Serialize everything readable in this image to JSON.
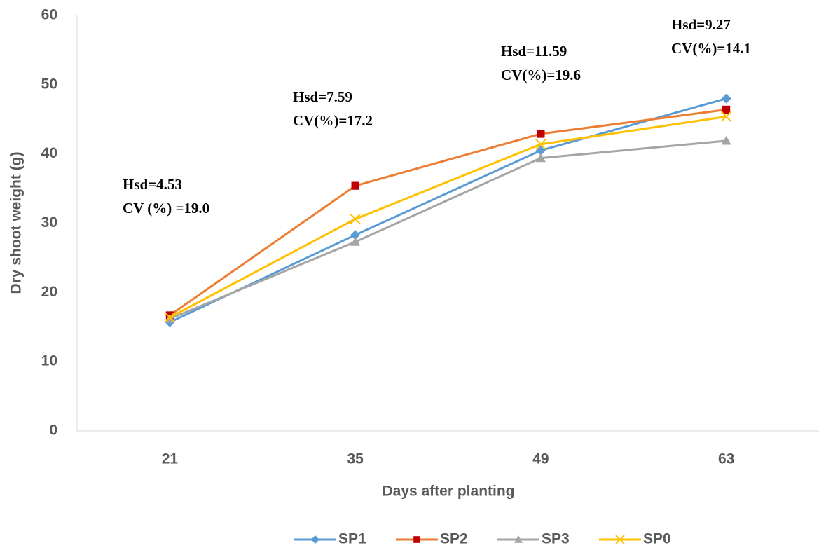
{
  "chart_data": {
    "type": "line",
    "x_label": "Days after planting",
    "y_label": "Dry shoot weight (g)",
    "categories": [
      "21",
      "35",
      "49",
      "63"
    ],
    "series": [
      {
        "name": "SP1",
        "color": "#5b9bd5",
        "marker": "diamond",
        "marker_color": "#5b9bd5",
        "values": [
          15.7,
          28.3,
          40.5,
          48.0
        ]
      },
      {
        "name": "SP2",
        "color": "#ed7d31",
        "marker": "square",
        "marker_color": "#c00000",
        "values": [
          16.7,
          35.4,
          42.9,
          46.4
        ]
      },
      {
        "name": "SP3",
        "color": "#a5a5a5",
        "marker": "triangle",
        "marker_color": "#a5a5a5",
        "values": [
          16.2,
          27.3,
          39.4,
          41.9
        ]
      },
      {
        "name": "SP0",
        "color": "#ffc000",
        "marker": "x",
        "marker_color": "#ffc000",
        "values": [
          16.4,
          30.6,
          41.4,
          45.4
        ]
      }
    ],
    "ylim": [
      0,
      60
    ],
    "yticks": [
      0,
      10,
      20,
      30,
      40,
      50,
      60
    ],
    "grid": false,
    "legend": "bottom",
    "annotations": [
      [
        "Hsd=4.53",
        "CV (%) =19.0"
      ],
      [
        "Hsd=7.59",
        "CV(%)=17.2"
      ],
      [
        "Hsd=11.59",
        "CV(%)=19.6"
      ],
      [
        "Hsd=9.27",
        "CV(%)=14.1"
      ]
    ]
  }
}
